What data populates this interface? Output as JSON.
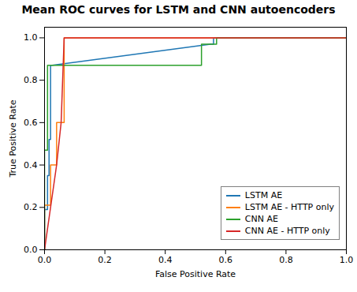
{
  "chart_data": {
    "type": "line",
    "title": "Mean ROC curves for LSTM and CNN autoencoders",
    "xlabel": "False Positive Rate",
    "ylabel": "True Positive Rate",
    "xlim": [
      0.0,
      1.0
    ],
    "ylim": [
      0.0,
      1.05
    ],
    "xticks": [
      {
        "value": 0.0,
        "label": "0.0"
      },
      0.2,
      0.4,
      0.6,
      0.8,
      {
        "value": 1.0,
        "label": "1.0"
      }
    ],
    "yticks": [
      {
        "value": 0.0,
        "label": "0.0"
      },
      0.2,
      0.4,
      0.6,
      0.8,
      {
        "value": 1.0,
        "label": "1.0"
      }
    ],
    "grid": false,
    "legend": "lower right",
    "series": [
      {
        "name": "LSTM AE",
        "color": "#1f77b4",
        "x": [
          0.0,
          0.0,
          0.01,
          0.01,
          0.015,
          0.015,
          0.02,
          0.02,
          0.025,
          0.025,
          0.55,
          0.56,
          0.56,
          0.75,
          1.0
        ],
        "values": [
          0.0,
          0.19,
          0.19,
          0.35,
          0.35,
          0.52,
          0.52,
          0.87,
          0.87,
          0.87,
          0.97,
          0.97,
          1.0,
          1.0,
          1.0
        ]
      },
      {
        "name": "LSTM AE - HTTP only",
        "color": "#ff7f0e",
        "x": [
          0.0,
          0.0,
          0.02,
          0.02,
          0.04,
          0.04,
          0.065,
          0.065,
          1.0
        ],
        "values": [
          0.0,
          0.21,
          0.21,
          0.4,
          0.4,
          0.6,
          0.6,
          1.0,
          1.0
        ]
      },
      {
        "name": "CNN AE",
        "color": "#2ca02c",
        "x": [
          0.0,
          0.0,
          0.01,
          0.01,
          0.015,
          0.015,
          0.52,
          0.52,
          0.535,
          0.535,
          0.57,
          0.57,
          1.0
        ],
        "values": [
          0.0,
          0.47,
          0.47,
          0.87,
          0.87,
          0.87,
          0.87,
          0.97,
          0.97,
          0.97,
          0.97,
          1.0,
          1.0
        ]
      },
      {
        "name": "CNN AE - HTTP only",
        "color": "#d62728",
        "x": [
          0.0,
          0.0,
          0.04,
          0.04,
          0.055,
          0.055,
          0.065,
          0.065,
          1.0
        ],
        "values": [
          0.0,
          0.0,
          0.4,
          0.4,
          0.6,
          0.6,
          1.0,
          1.0,
          1.0
        ]
      }
    ]
  }
}
